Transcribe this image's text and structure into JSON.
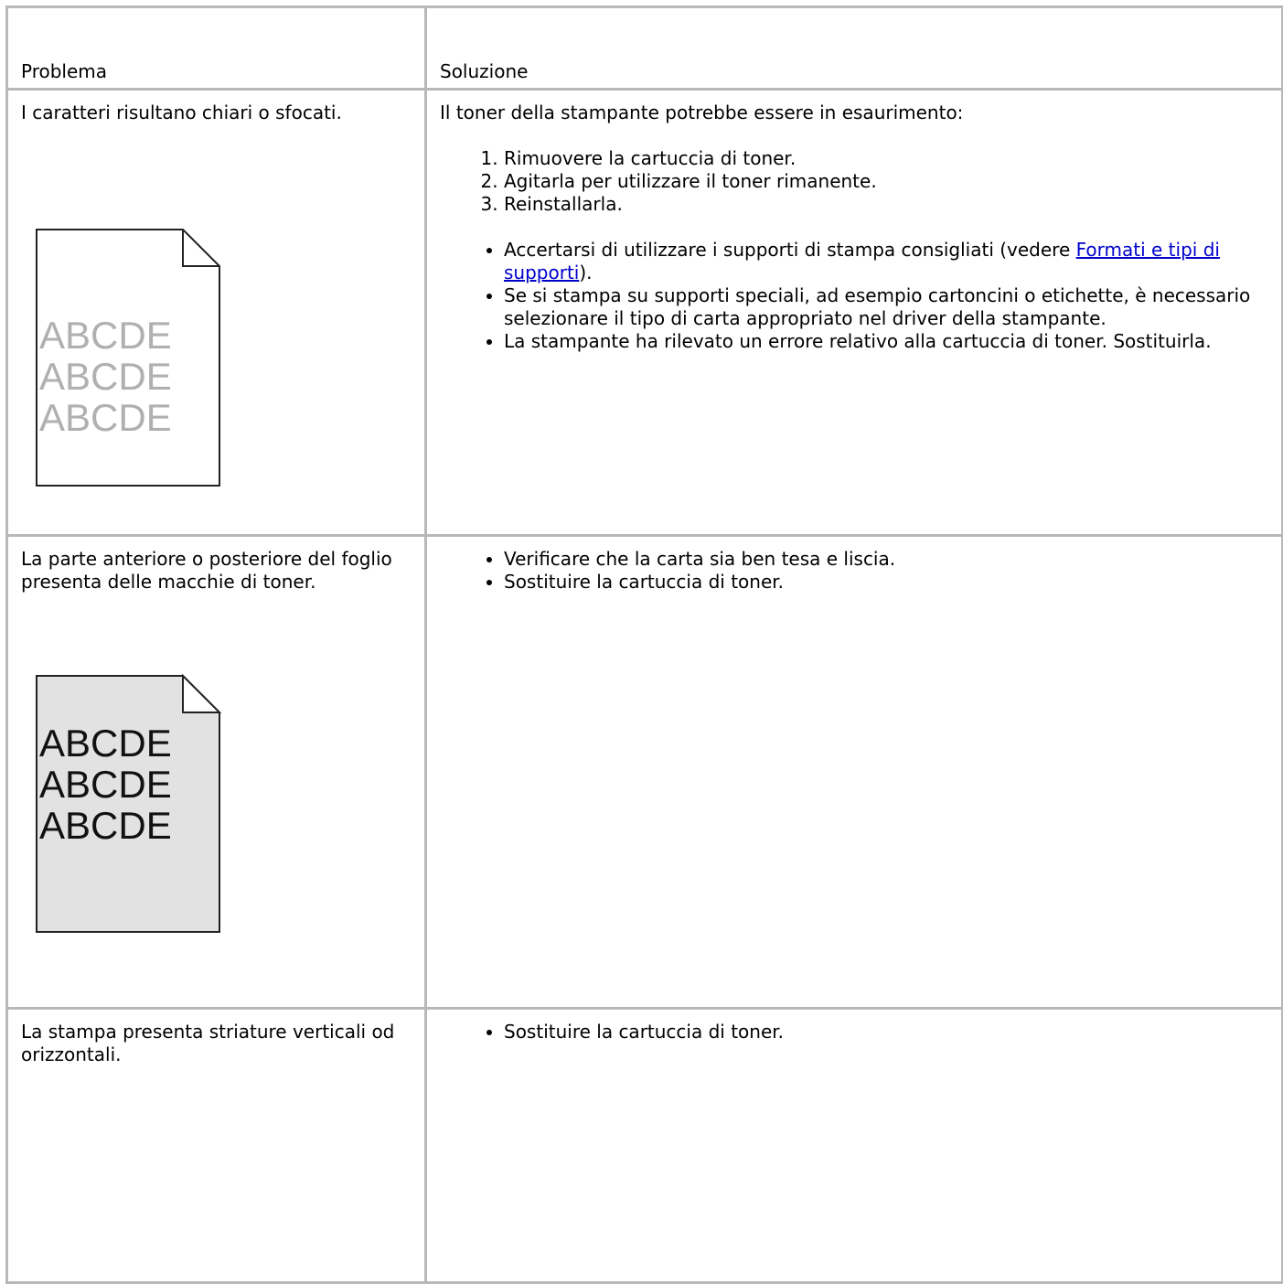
{
  "table": {
    "header": [
      "Problema",
      "Soluzione"
    ],
    "rows": [
      {
        "problem": "I caratteri risultano chiari o sfocati.",
        "illustration": [
          "ABCDE",
          "ABCDE",
          "ABCDE"
        ],
        "solution": {
          "intro": "Il toner della stampante potrebbe essere in esaurimento:",
          "steps": [
            "Rimuovere la cartuccia di toner.",
            "Agitarla per utilizzare il toner rimanente.",
            "Reinstallarla."
          ],
          "bullets": [
            [
              "Accertarsi di utilizzare i supporti di stampa consigliati (vedere ",
              "Formati e tipi di supporti",
              ")."
            ],
            [
              "Se si stampa su supporti speciali, ad esempio cartoncini o etichette, è necessario selezionare il tipo di carta appropriato nel driver della stampante."
            ],
            [
              "La stampante ha rilevato un errore relativo alla cartuccia di toner. Sostituirla."
            ]
          ]
        }
      },
      {
        "problem": "La parte anteriore o posteriore del foglio presenta delle macchie di toner.",
        "illustration": [
          "ABCDE",
          "ABCDE",
          "ABCDE"
        ],
        "solution": {
          "bullets": [
            [
              "Verificare che la carta sia ben tesa e liscia."
            ],
            [
              "Sostituire la cartuccia di toner."
            ]
          ]
        }
      },
      {
        "problem": "La stampa presenta striature verticali od orizzontali.",
        "solution": {
          "bullets": [
            [
              "Sostituire la cartuccia di toner."
            ]
          ]
        }
      }
    ]
  }
}
